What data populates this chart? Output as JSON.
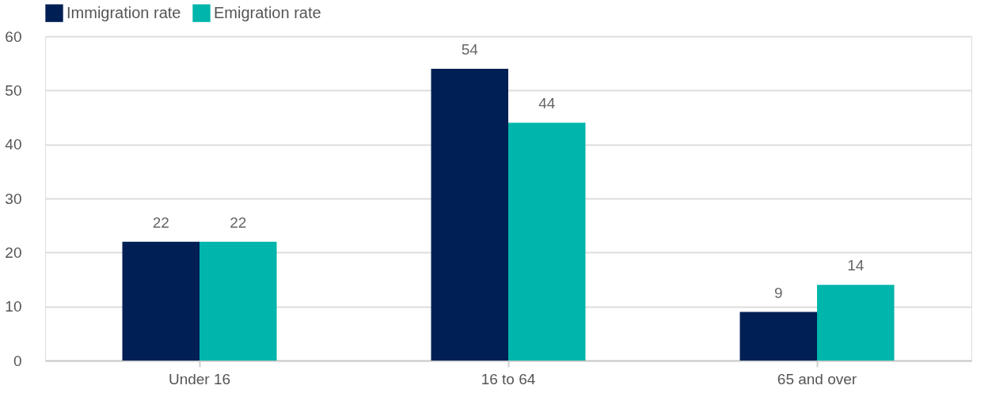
{
  "chart_data": {
    "type": "bar",
    "categories": [
      "Under 16",
      "16 to 64",
      "65 and over"
    ],
    "series": [
      {
        "name": "Immigration rate",
        "color": "#001f54",
        "values": [
          22,
          54,
          9
        ]
      },
      {
        "name": "Emigration rate",
        "color": "#00b5ab",
        "values": [
          22,
          44,
          14
        ]
      }
    ],
    "ylim": [
      0,
      60
    ],
    "yticks": [
      0,
      10,
      20,
      30,
      40,
      50,
      60
    ],
    "grid": "y",
    "legend": "top left",
    "data_labels": true
  }
}
